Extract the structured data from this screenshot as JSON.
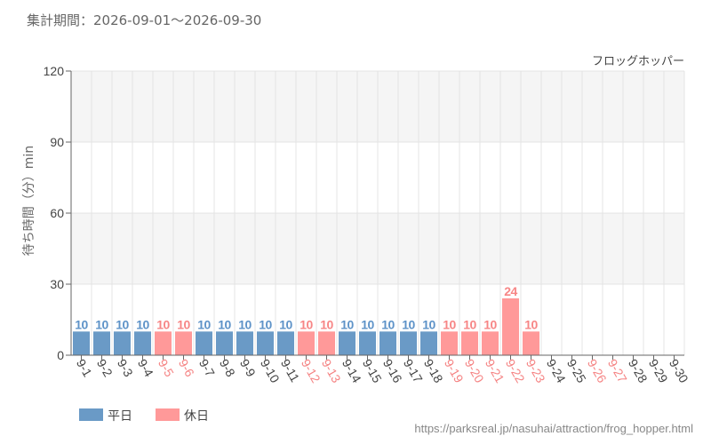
{
  "header": {
    "period_label": "集計期間：2026-09-01～2026-09-30"
  },
  "chart_data": {
    "type": "bar",
    "title": "フロッグホッパー",
    "xlabel": "",
    "ylabel": "待ち時間（分）min",
    "ylim": [
      0,
      120
    ],
    "yticks": [
      0,
      30,
      60,
      90,
      120
    ],
    "grid": true,
    "legend_position": "bottom-left",
    "categories": [
      "9-1",
      "9-2",
      "9-3",
      "9-4",
      "9-5",
      "9-6",
      "9-7",
      "9-8",
      "9-9",
      "9-10",
      "9-11",
      "9-12",
      "9-13",
      "9-14",
      "9-15",
      "9-16",
      "9-17",
      "9-18",
      "9-19",
      "9-20",
      "9-21",
      "9-22",
      "9-23",
      "9-24",
      "9-25",
      "9-26",
      "9-27",
      "9-28",
      "9-29",
      "9-30"
    ],
    "holiday": [
      false,
      false,
      false,
      false,
      true,
      true,
      false,
      false,
      false,
      false,
      false,
      true,
      true,
      false,
      false,
      false,
      false,
      false,
      true,
      true,
      true,
      true,
      true,
      false,
      false,
      true,
      true,
      false,
      false,
      false
    ],
    "series": [
      {
        "name": "平日",
        "color": "#6a9ac6",
        "label_color": "#5e93c8",
        "values": [
          10,
          10,
          10,
          10,
          null,
          null,
          10,
          10,
          10,
          10,
          10,
          null,
          null,
          10,
          10,
          10,
          10,
          10,
          null,
          null,
          null,
          null,
          null,
          null,
          null,
          null,
          null,
          null,
          null,
          null
        ]
      },
      {
        "name": "休日",
        "color": "#ff9999",
        "label_color": "#f78686",
        "values": [
          null,
          null,
          null,
          null,
          10,
          10,
          null,
          null,
          null,
          null,
          null,
          10,
          10,
          null,
          null,
          null,
          null,
          null,
          10,
          10,
          10,
          24,
          10,
          null,
          null,
          null,
          null,
          null,
          null,
          null
        ]
      }
    ]
  },
  "colors": {
    "weekday_tick_label": "#444444",
    "holiday_tick_label": "#f58383",
    "band": "#f5f5f5",
    "grid": "#e4e4e4",
    "axis": "#666666"
  },
  "footer": {
    "source_url": "https://parksreal.jp/nasuhai/attraction/frog_hopper.html"
  }
}
